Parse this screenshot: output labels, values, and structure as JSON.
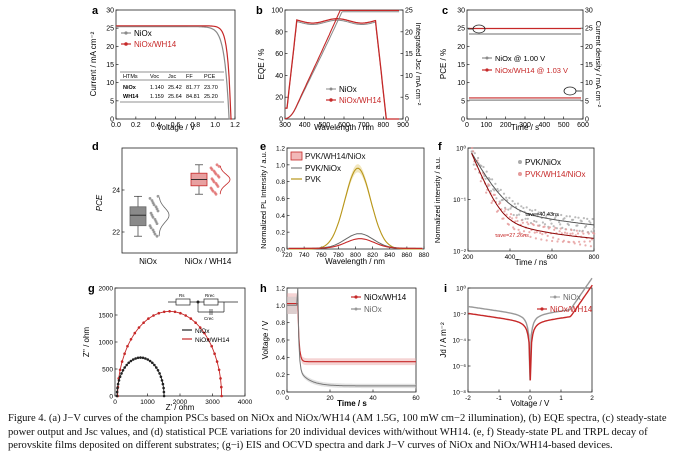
{
  "colors": {
    "nio": "#8a8a8a",
    "wh14": "#c62828",
    "pvk": "#b8961a",
    "dark": "#222222"
  },
  "panel_labels": [
    "a",
    "b",
    "c",
    "d",
    "e",
    "f",
    "g",
    "h",
    "i"
  ],
  "caption": {
    "text": "Figure 4. (a) J−V curves of the champion PSCs based on NiOx and NiOx/WH14 (AM 1.5G, 100 mW cm−2 illumination), (b) EQE spectra, (c) steady-state power output and Jsc values, and (d) statistical PCE variations for 20 individual devices with/without WH14. (e, f) Steady-state PL and TRPL decay of perovskite films deposited on different substrates; (g−i) EIS and OCVD spectra and dark J−V curves of NiOx and NiOx/WH14-based devices."
  },
  "chart_data": [
    {
      "panel": "a",
      "type": "line",
      "xlabel": "Voltage / V",
      "ylabel": "Current / mA cm⁻²",
      "xlim": [
        0,
        1.2
      ],
      "ylim": [
        0,
        30
      ],
      "xticks": [
        "0.0",
        "0.2",
        "0.4",
        "0.6",
        "0.8",
        "1.0",
        "1.2"
      ],
      "yticks": [
        "0",
        "5",
        "10",
        "15",
        "20",
        "25",
        "30"
      ],
      "legend": [
        "NiOx",
        "NiOx/WH14"
      ],
      "series": [
        {
          "name": "NiOx",
          "voc": 1.14,
          "jsc": 25.42
        },
        {
          "name": "NiOx/WH14",
          "voc": 1.159,
          "jsc": 25.64
        }
      ],
      "table": {
        "headers": [
          "HTMs",
          "Voc",
          "Jsc",
          "FF",
          "PCE"
        ],
        "rows": [
          [
            "NiOx",
            "1.140",
            "25.42",
            "81.77",
            "23.70"
          ],
          [
            "WH14",
            "1.159",
            "25.64",
            "84.81",
            "25.20"
          ]
        ]
      }
    },
    {
      "panel": "b",
      "type": "line",
      "xlabel": "Wavelength / nm",
      "ylabel": "EQE / %",
      "y2label": "Integrated Jsc / mA cm⁻²",
      "xlim": [
        300,
        900
      ],
      "ylim": [
        0,
        100
      ],
      "y2lim": [
        0,
        25
      ],
      "xticks": [
        "300",
        "400",
        "500",
        "600",
        "700",
        "800",
        "900"
      ],
      "yticks": [
        "0",
        "20",
        "40",
        "60",
        "80",
        "100"
      ],
      "y2ticks": [
        "0",
        "5",
        "10",
        "15",
        "20",
        "25"
      ],
      "legend": [
        "NiOx",
        "NiOx/WH14"
      ]
    },
    {
      "panel": "c",
      "type": "line",
      "xlabel": "Time / s",
      "ylabel": "PCE / %",
      "y2label": "Current density / mA cm⁻²",
      "xlim": [
        0,
        600
      ],
      "ylim": [
        0,
        30
      ],
      "y2lim": [
        30,
        0
      ],
      "xticks": [
        "0",
        "100",
        "200",
        "300",
        "400",
        "500",
        "600"
      ],
      "yticks": [
        "0",
        "5",
        "10",
        "15",
        "20",
        "25",
        "30"
      ],
      "y2ticks": [
        "0",
        "5",
        "10",
        "15",
        "20",
        "25",
        "30"
      ],
      "legend": [
        "NiOx @ 1.00 V",
        "NiOx/WH14 @ 1.03 V"
      ],
      "series": [
        {
          "name": "NiOx PCE",
          "value": 23.4
        },
        {
          "name": "WH14 PCE",
          "value": 24.9
        },
        {
          "name": "NiOx J",
          "value": 24.8
        },
        {
          "name": "WH14 J",
          "value": 24.2
        }
      ]
    },
    {
      "panel": "d",
      "type": "box",
      "ylabel": "PCE",
      "categories": [
        "NiOx",
        "NiOx / WH14"
      ],
      "ylim": [
        21,
        26
      ],
      "yticks": [
        "22",
        "24"
      ],
      "series": [
        {
          "name": "NiOx",
          "median": 22.8,
          "q1": 22.3,
          "q3": 23.2,
          "min": 21.8,
          "max": 23.7
        },
        {
          "name": "NiOx/WH14",
          "median": 24.5,
          "q1": 24.2,
          "q3": 24.8,
          "min": 23.8,
          "max": 25.2
        }
      ]
    },
    {
      "panel": "e",
      "type": "line",
      "xlabel": "Wavelength / nm",
      "ylabel": "Normalized PL Intensity / a.u.",
      "xlim": [
        710,
        890
      ],
      "ylim": [
        0,
        1.25
      ],
      "xticks": [
        "720",
        "740",
        "760",
        "780",
        "800",
        "820",
        "840",
        "860",
        "880"
      ],
      "yticks": [
        "0.0",
        "0.2",
        "0.4",
        "0.6",
        "0.8",
        "1.0",
        "1.2"
      ],
      "legend": [
        "PVK/WH14/NiOx",
        "PVK/NiOx",
        "PVK"
      ],
      "series": [
        {
          "name": "PVK",
          "peak": 1.0
        },
        {
          "name": "PVK/NiOx",
          "peak": 0.18
        },
        {
          "name": "PVK/WH14/NiOx",
          "peak": 0.12
        }
      ]
    },
    {
      "panel": "f",
      "type": "scatter",
      "xlabel": "Time / ns",
      "ylabel": "Normalized intensity / a.u.",
      "xlim": [
        100,
        800
      ],
      "yscale": "log",
      "xticks": [
        "200",
        "400",
        "600",
        "800"
      ],
      "yticks": [
        "10⁻²",
        "10⁻¹",
        "10⁰"
      ],
      "legend": [
        "PVK/NiOx",
        "PVK/WH14/NiOx"
      ],
      "annotations": [
        "τave=40.43ns",
        "τave=27.26ns"
      ]
    },
    {
      "panel": "g",
      "type": "scatter",
      "xlabel": "Z' / ohm",
      "ylabel": "Z'' / ohm",
      "xlim": [
        0,
        4000
      ],
      "ylim": [
        0,
        2000
      ],
      "xticks": [
        "0",
        "1000",
        "2000",
        "3000",
        "4000"
      ],
      "yticks": [
        "0",
        "500",
        "1000",
        "1500",
        "2000"
      ],
      "legend": [
        "NiOx",
        "NiOx/WH14"
      ],
      "circuit": [
        "Rs",
        "Rrec",
        "Crec"
      ],
      "series": [
        {
          "name": "NiOx",
          "diameter": 1450
        },
        {
          "name": "NiOx/WH14",
          "diameter": 3200
        }
      ]
    },
    {
      "panel": "h",
      "type": "line",
      "xlabel": "Time / s",
      "ylabel": "Voltage / V",
      "xlim": [
        0,
        60
      ],
      "ylim": [
        0,
        1.2
      ],
      "xticks": [
        "0",
        "20",
        "40",
        "60"
      ],
      "yticks": [
        "0.0",
        "0.2",
        "0.4",
        "0.6",
        "0.8",
        "1.0",
        "1.2"
      ],
      "legend": [
        "NiOx/WH14",
        "NiOx"
      ]
    },
    {
      "panel": "i",
      "type": "line",
      "xlabel": "Voltage / V",
      "ylabel": "Jd / A m⁻²",
      "xlim": [
        -2,
        2
      ],
      "yscale": "log",
      "xticks": [
        "-2",
        "-1",
        "0",
        "1",
        "2"
      ],
      "yticks": [
        "10⁰",
        "10⁻²",
        "10⁻⁴",
        "10⁻⁶",
        "10⁻⁸"
      ],
      "legend": [
        "NiOx",
        "NiOx/WH14"
      ]
    }
  ]
}
